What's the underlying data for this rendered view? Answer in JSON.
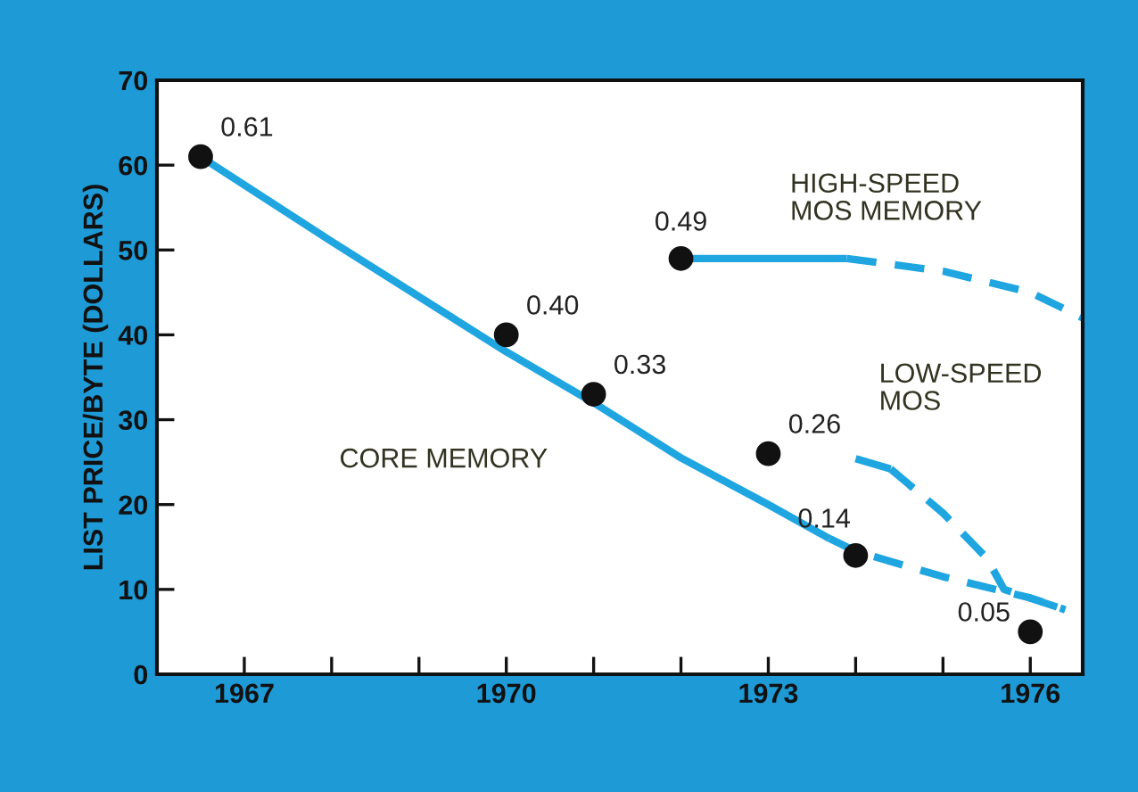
{
  "chart_data": {
    "type": "line",
    "ylabel": "LIST PRICE/BYTE (DOLLARS)",
    "xlim": [
      1966,
      1976.6
    ],
    "ylim": [
      0,
      70
    ],
    "xticks": [
      {
        "value": 1967,
        "label": "1967"
      },
      {
        "value": 1968,
        "label": null
      },
      {
        "value": 1969,
        "label": null
      },
      {
        "value": 1970,
        "label": "1970"
      },
      {
        "value": 1971,
        "label": null
      },
      {
        "value": 1972,
        "label": null
      },
      {
        "value": 1973,
        "label": "1973"
      },
      {
        "value": 1974,
        "label": null
      },
      {
        "value": 1975,
        "label": null
      },
      {
        "value": 1976,
        "label": "1976"
      }
    ],
    "yticks": [
      0,
      10,
      20,
      30,
      40,
      50,
      60,
      70
    ],
    "grid": false,
    "legend": false,
    "series": [
      {
        "name": "CORE MEMORY",
        "line_style": "solid",
        "color": "#1fa6e0",
        "x": [
          1966.5,
          1968,
          1970,
          1971,
          1972,
          1973,
          1973.7
        ],
        "values": [
          61,
          51,
          38,
          32,
          25.5,
          20,
          16
        ]
      },
      {
        "line_style": "dashed",
        "color": "#1fa6e0",
        "x": [
          1973.7,
          1974,
          1975,
          1976,
          1976.4
        ],
        "values": [
          16,
          14.5,
          11.5,
          9,
          7.6
        ]
      },
      {
        "name": "HIGH-SPEED\nMOS MEMORY",
        "line_style": "solid",
        "color": "#1fa6e0",
        "x": [
          1972,
          1973.9
        ],
        "values": [
          49,
          49
        ]
      },
      {
        "line_style": "dashed",
        "color": "#1fa6e0",
        "x": [
          1973.9,
          1975,
          1976,
          1976.6
        ],
        "values": [
          49,
          47.5,
          45,
          42
        ]
      },
      {
        "name": "LOW-SPEED\nMOS",
        "line_style": "solid",
        "color": "#1fa6e0",
        "x": [
          1974,
          1974.4
        ],
        "values": [
          25.4,
          24.2
        ]
      },
      {
        "line_style": "dashed",
        "color": "#1fa6e0",
        "x": [
          1974.4,
          1975,
          1975.5,
          1975.7,
          1976.4
        ],
        "values": [
          24.2,
          19,
          13.7,
          10,
          7.6
        ]
      },
      {
        "type": "scatter",
        "marker": "circle",
        "color": "#111111",
        "x": [
          1966.5,
          1970,
          1971,
          1972,
          1973,
          1974,
          1976
        ],
        "values": [
          61,
          40,
          33,
          49,
          26,
          14,
          5
        ]
      }
    ],
    "annotations": [
      {
        "text": "0.61",
        "x": 1966.5,
        "y": 61
      },
      {
        "text": "0.40",
        "x": 1970,
        "y": 40
      },
      {
        "text": "0.33",
        "x": 1971,
        "y": 33
      },
      {
        "text": "0.49",
        "x": 1972,
        "y": 49
      },
      {
        "text": "0.26",
        "x": 1973,
        "y": 26
      },
      {
        "text": "0.14",
        "x": 1974,
        "y": 14
      },
      {
        "text": "0.05",
        "x": 1976,
        "y": 5
      }
    ]
  }
}
